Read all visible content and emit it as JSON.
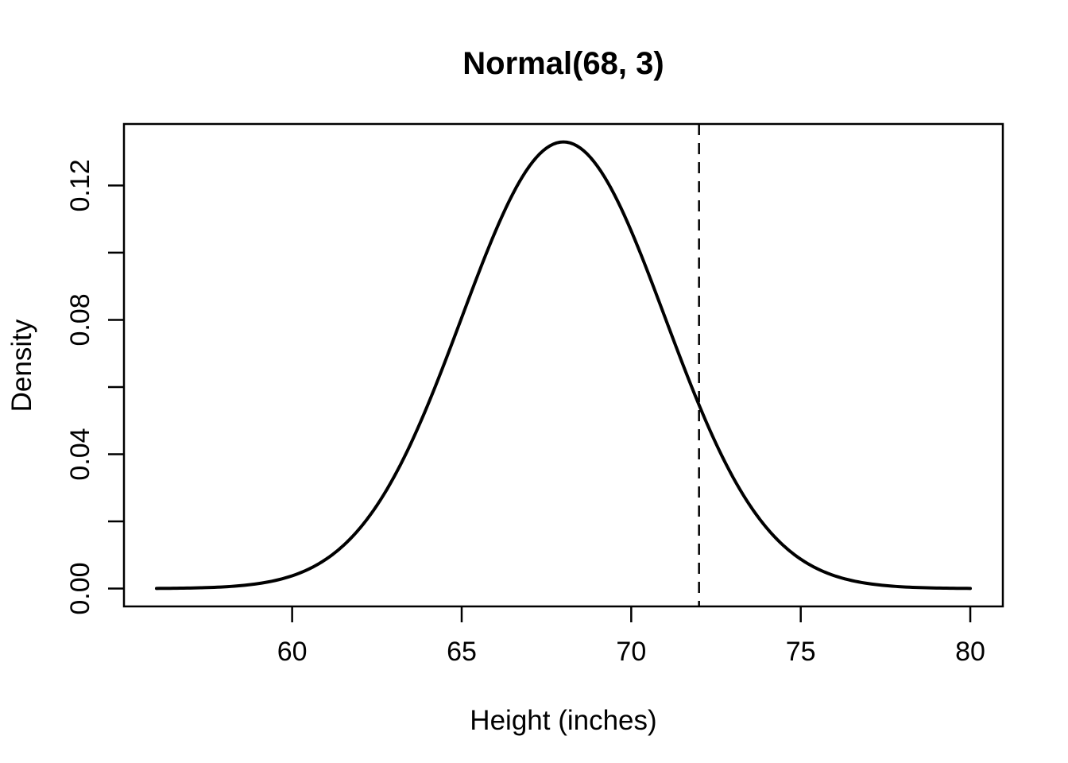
{
  "figure": {
    "title": "Normal(68, 3)",
    "xlabel": "Height (inches)",
    "ylabel": "Density"
  },
  "chart_data": {
    "type": "line",
    "title": "Normal(68, 3)",
    "xlabel": "Height (inches)",
    "ylabel": "Density",
    "curve": "normal-density",
    "distribution": {
      "mean": 68,
      "sd": 3
    },
    "x_range": [
      56,
      80
    ],
    "xlim": [
      56,
      80
    ],
    "ylim": [
      0,
      0.133
    ],
    "axis_expansion": 0.04,
    "grid": false,
    "legend": null,
    "x_ticks": [
      {
        "value": 60,
        "label": "60"
      },
      {
        "value": 65,
        "label": "65"
      },
      {
        "value": 70,
        "label": "70"
      },
      {
        "value": 75,
        "label": "75"
      },
      {
        "value": 80,
        "label": "80"
      }
    ],
    "y_ticks": [
      {
        "value": 0.0,
        "label": "0.00"
      },
      {
        "value": 0.02,
        "label": ""
      },
      {
        "value": 0.04,
        "label": "0.04"
      },
      {
        "value": 0.06,
        "label": ""
      },
      {
        "value": 0.08,
        "label": "0.08"
      },
      {
        "value": 0.1,
        "label": ""
      },
      {
        "value": 0.12,
        "label": "0.12"
      }
    ],
    "vline": {
      "x": 72,
      "style": "dashed",
      "color": "#000000"
    },
    "points": [
      [
        56,
        4.5e-05
      ],
      [
        57,
        0.00016
      ],
      [
        58,
        0.000514
      ],
      [
        59,
        0.001477
      ],
      [
        60,
        0.003799
      ],
      [
        61,
        0.008741
      ],
      [
        62,
        0.017997
      ],
      [
        63,
        0.033159
      ],
      [
        64,
        0.05467
      ],
      [
        65,
        0.080657
      ],
      [
        66,
        0.106483
      ],
      [
        67,
        0.125794
      ],
      [
        68,
        0.132981
      ],
      [
        69,
        0.125794
      ],
      [
        70,
        0.106483
      ],
      [
        71,
        0.080657
      ],
      [
        72,
        0.05467
      ],
      [
        73,
        0.033159
      ],
      [
        74,
        0.017997
      ],
      [
        75,
        0.008741
      ],
      [
        76,
        0.003799
      ],
      [
        77,
        0.001477
      ],
      [
        78,
        0.000514
      ],
      [
        79,
        0.00016
      ],
      [
        80,
        4.5e-05
      ]
    ],
    "colors": {
      "curve": "#000000",
      "vline": "#000000",
      "axis": "#000000",
      "background": "#ffffff"
    }
  }
}
